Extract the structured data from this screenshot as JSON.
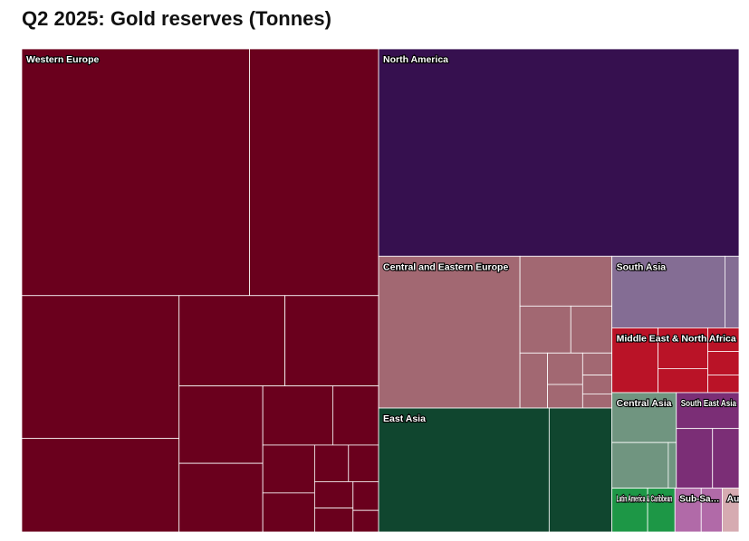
{
  "chart_data": {
    "type": "treemap",
    "title": "Q2 2025: Gold reserves (Tonnes)",
    "unit": "Tonnes",
    "regions": [
      {
        "name": "Western Europe",
        "label": "Western Europe",
        "color": "#6a001d",
        "values": [
          6115,
          3465,
          2445,
          1600,
          1040,
          920,
          705,
          625,
          450,
          295,
          270,
          220,
          135,
          120,
          110,
          100,
          80,
          60
        ]
      },
      {
        "name": "North America",
        "label": "North America",
        "color": "#36104f",
        "values": [
          8133
        ]
      },
      {
        "name": "East Asia",
        "label": "East Asia",
        "color": "#10462f",
        "values": [
          2299,
          846
        ]
      },
      {
        "name": "Central and Eastern Europe",
        "label": "Central and Eastern Europe",
        "color": "#a26872",
        "values": [
          2333,
          498,
          260,
          210,
          165,
          120,
          90,
          70,
          60,
          45
        ]
      },
      {
        "name": "South Asia",
        "label": "South Asia",
        "color": "#846d94",
        "values": [
          880,
          110
        ]
      },
      {
        "name": "Central Asia",
        "label": "Central Asia",
        "color": "#709580",
        "values": [
          350,
          280,
          40
        ]
      },
      {
        "name": "Middle East & North Africa",
        "label": "Middle East & North Africa",
        "color": "#ba1327",
        "values": [
          325,
          220,
          130,
          80,
          80,
          60
        ]
      },
      {
        "name": "South East Asia",
        "label": "South East Asia",
        "color": "#7b2e76",
        "values": [
          245,
          235,
          172
        ]
      },
      {
        "name": "Latin America & Caribbean",
        "label": "Latin America & Caribbean",
        "color": "#1d9746",
        "values": [
          170,
          130
        ]
      },
      {
        "name": "Sub-Saharan Africa",
        "label": "Sub-Sa…",
        "color": "#b16aa8",
        "values": [
          125,
          100
        ]
      },
      {
        "name": "Australasia / Oceania",
        "label": "Australasia / Oceania",
        "color": "#d6abb1",
        "values": [
          80
        ]
      }
    ]
  }
}
